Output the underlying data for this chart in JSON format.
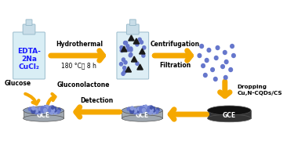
{
  "bg_color": "#ffffff",
  "arrow_color": "#f5a800",
  "text_color": "#000000",
  "blue_text": "#1a1aff",
  "bottle_body_color": "#d9eef5",
  "bottle_cap_color": "#c8dde8",
  "bottle_outline": "#9bbccc",
  "particle_blue": "#6677cc",
  "particle_dark": "#222244",
  "triangle_color": "#1a1a1a",
  "gce_top_color": "#8899bb",
  "gce_side_color": "#a0a8b0",
  "gce_dark_color": "#111111",
  "labels": {
    "bottle1": [
      "EDTA-",
      "2Na",
      "CuCl₂"
    ],
    "arrow1": [
      "Hydrothermal",
      "180 °C， 8 h"
    ],
    "arrow2": [
      "Centrifugation",
      "Filtration"
    ],
    "arrow3": [
      "Dropping",
      "Cu,N-CQDs/CS"
    ],
    "arrow4_label": "Detection",
    "glucose": "Glucose",
    "gluconolactone": "Gluconolactone",
    "gce": "GCE"
  },
  "figsize": [
    3.66,
    1.89
  ],
  "dpi": 100
}
